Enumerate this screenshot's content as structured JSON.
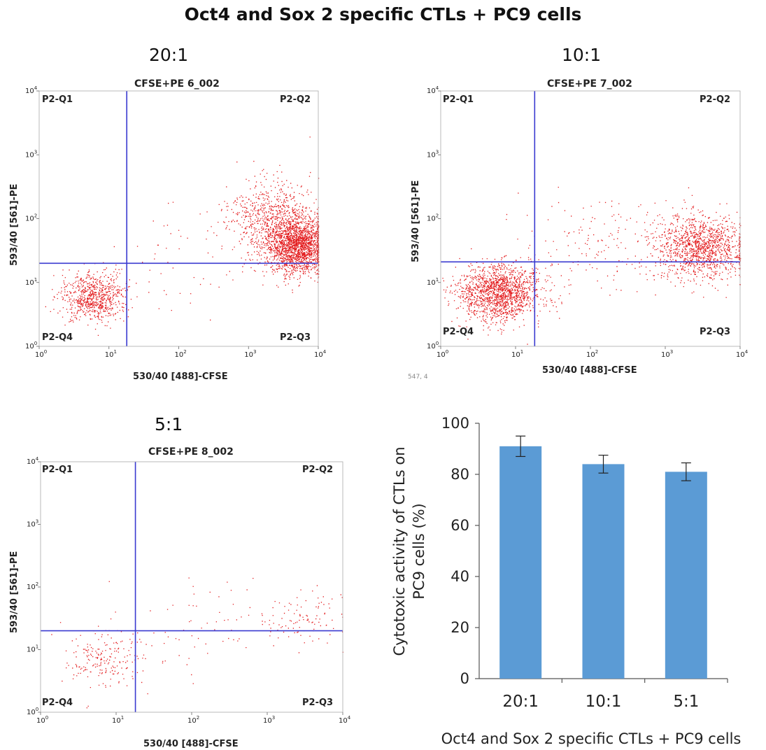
{
  "title": "Oct4 and Sox 2 specific CTLs  + PC9 cells",
  "stray_text": "547, 4",
  "chart_data": [
    {
      "type": "scatter",
      "panel_label": "20:1",
      "sample_name": "CFSE+PE 6_002",
      "xlabel": "530/40 [488]-CFSE",
      "ylabel": "593/40 [561]-PE",
      "x_scale": "log",
      "y_scale": "log",
      "xlim": [
        1,
        10000
      ],
      "ylim": [
        1,
        10000
      ],
      "ticks": [
        "10",
        "10",
        "10",
        "10",
        "10"
      ],
      "tick_exponents": [
        "0",
        "1",
        "2",
        "3",
        "4"
      ],
      "quadrant_gate": {
        "x": 18,
        "y": 20
      },
      "quadrants": [
        "P2-Q1",
        "P2-Q2",
        "P2-Q3",
        "P2-Q4"
      ],
      "populations": [
        {
          "cx": 6,
          "cy": 6,
          "sx": 0.22,
          "sy": 0.2,
          "n": 750
        },
        {
          "cx": 5000,
          "cy": 38,
          "sx": 0.22,
          "sy": 0.22,
          "n": 1900
        },
        {
          "cx": 2000,
          "cy": 100,
          "sx": 0.3,
          "sy": 0.3,
          "n": 700
        },
        {
          "cx": 150,
          "cy": 25,
          "sx": 0.55,
          "sy": 0.45,
          "n": 60
        }
      ]
    },
    {
      "type": "scatter",
      "panel_label": "10:1",
      "sample_name": "CFSE+PE 7_002",
      "xlabel": "530/40 [488]-CFSE",
      "ylabel": "593/40 [561]-PE",
      "x_scale": "log",
      "y_scale": "log",
      "xlim": [
        1,
        10000
      ],
      "ylim": [
        1,
        10000
      ],
      "ticks": [
        "10",
        "10",
        "10",
        "10",
        "10"
      ],
      "tick_exponents": [
        "0",
        "1",
        "2",
        "3",
        "4"
      ],
      "quadrant_gate": {
        "x": 18,
        "y": 21
      },
      "quadrants": [
        "P2-Q1",
        "P2-Q2",
        "P2-Q3",
        "P2-Q4"
      ],
      "populations": [
        {
          "cx": 6,
          "cy": 7,
          "sx": 0.28,
          "sy": 0.22,
          "n": 1600
        },
        {
          "cx": 3000,
          "cy": 35,
          "sx": 0.3,
          "sy": 0.25,
          "n": 1300
        },
        {
          "cx": 120,
          "cy": 40,
          "sx": 0.5,
          "sy": 0.35,
          "n": 150
        }
      ]
    },
    {
      "type": "scatter",
      "panel_label": "5:1",
      "sample_name": "CFSE+PE 8_002",
      "xlabel": "530/40 [488]-CFSE",
      "ylabel": "593/40 [561]-PE",
      "x_scale": "log",
      "y_scale": "log",
      "xlim": [
        1,
        10000
      ],
      "ylim": [
        1,
        10000
      ],
      "ticks": [
        "10",
        "10",
        "10",
        "10",
        "10"
      ],
      "tick_exponents": [
        "0",
        "1",
        "2",
        "3",
        "4"
      ],
      "quadrant_gate": {
        "x": 18,
        "y": 20
      },
      "quadrants": [
        "P2-Q1",
        "P2-Q2",
        "P2-Q3",
        "P2-Q4"
      ],
      "populations": [
        {
          "cx": 7,
          "cy": 7,
          "sx": 0.3,
          "sy": 0.24,
          "n": 3400
        },
        {
          "cx": 3000,
          "cy": 35,
          "sx": 0.32,
          "sy": 0.25,
          "n": 1300
        },
        {
          "cx": 150,
          "cy": 30,
          "sx": 0.55,
          "sy": 0.4,
          "n": 150
        }
      ]
    },
    {
      "type": "bar",
      "categories": [
        "20:1",
        "10:1",
        "5:1"
      ],
      "values": [
        91,
        84,
        81
      ],
      "errors": [
        4,
        3.5,
        3.5
      ],
      "ylabel": "Cytotoxic activity of CTLs on PC9 cells (%)",
      "ylabel_lines": [
        "Cytotoxic activity of CTLs on",
        "PC9 cells (%)"
      ],
      "xlabel": "Oct4 and Sox 2 specific CTLs  + PC9 cells",
      "ylim": [
        0,
        100
      ],
      "yticks": [
        "0",
        "20",
        "40",
        "60",
        "80",
        "100"
      ],
      "colors": {
        "bar": "#5b9bd5",
        "axis": "#555555",
        "dots": "#e31a1c",
        "gate": "#3a3ad0"
      }
    }
  ]
}
